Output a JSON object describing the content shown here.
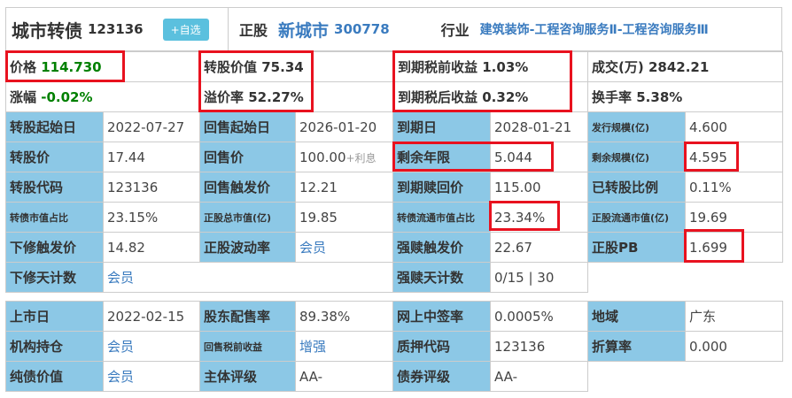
{
  "header": {
    "bond_name": "城市转债",
    "bond_code": "123136",
    "add_watch": "+自选",
    "stock_label": "正股",
    "stock_name": "新城市",
    "stock_code": "300778",
    "industry_label": "行业",
    "industry": "建筑装饰-工程咨询服务Ⅱ-工程咨询服务Ⅲ"
  },
  "quote": {
    "price_label": "价格",
    "price": "114.730",
    "change_label": "涨幅",
    "change": "-0.02%",
    "conv_value_label": "转股价值",
    "conv_value": "75.34",
    "premium_label": "溢价率",
    "premium": "52.27%",
    "ytm_pre_label": "到期税前收益",
    "ytm_pre": "1.03%",
    "ytm_post_label": "到期税后收益",
    "ytm_post": "0.32%",
    "volume_label": "成交(万)",
    "volume": "2842.21",
    "turnover_label": "换手率",
    "turnover": "5.38%"
  },
  "rows": [
    [
      [
        "转股起始日",
        "2022-07-27"
      ],
      [
        "回售起始日",
        "2026-01-20"
      ],
      [
        "到期日",
        "2028-01-21"
      ],
      [
        "发行规模(亿)",
        "4.600"
      ]
    ],
    [
      [
        "转股价",
        "17.44"
      ],
      [
        "回售价",
        "100.00",
        "+利息"
      ],
      [
        "剩余年限",
        "5.044"
      ],
      [
        "剩余规模(亿)",
        "4.595"
      ]
    ],
    [
      [
        "转股代码",
        "123136"
      ],
      [
        "回售触发价",
        "12.21"
      ],
      [
        "到期赎回价",
        "115.00"
      ],
      [
        "已转股比例",
        "0.11%"
      ]
    ],
    [
      [
        "转债市值占比",
        "23.15%"
      ],
      [
        "正股总市值(亿)",
        "19.85"
      ],
      [
        "转债流通市值占比",
        "23.34%"
      ],
      [
        "正股流通市值(亿)",
        "19.69"
      ]
    ],
    [
      [
        "下修触发价",
        "14.82"
      ],
      [
        "正股波动率",
        "会员"
      ],
      [
        "强赎触发价",
        "22.67"
      ],
      [
        "正股PB",
        "1.699"
      ]
    ],
    [
      [
        "下修天计数",
        "会员"
      ],
      [
        "强赎天计数",
        "0/15 | 30"
      ]
    ]
  ],
  "rows2": [
    [
      [
        "上市日",
        "2022-02-15"
      ],
      [
        "股东配售率",
        "89.38%"
      ],
      [
        "网上中签率",
        "0.0005%"
      ],
      [
        "地域",
        "广东"
      ]
    ],
    [
      [
        "机构持仓",
        "会员"
      ],
      [
        "回售税前收益",
        "增强"
      ],
      [
        "质押代码",
        "123136"
      ],
      [
        "折算率",
        "0.000"
      ]
    ],
    [
      [
        "纯债价值",
        "会员"
      ],
      [
        "主体评级",
        "AA-"
      ],
      [
        "债券评级",
        "AA-"
      ]
    ]
  ],
  "colors": {
    "label_bg": "#8cc8e6",
    "link": "#3a7bbf",
    "green": "#008000",
    "highlight": "#e8121f"
  }
}
